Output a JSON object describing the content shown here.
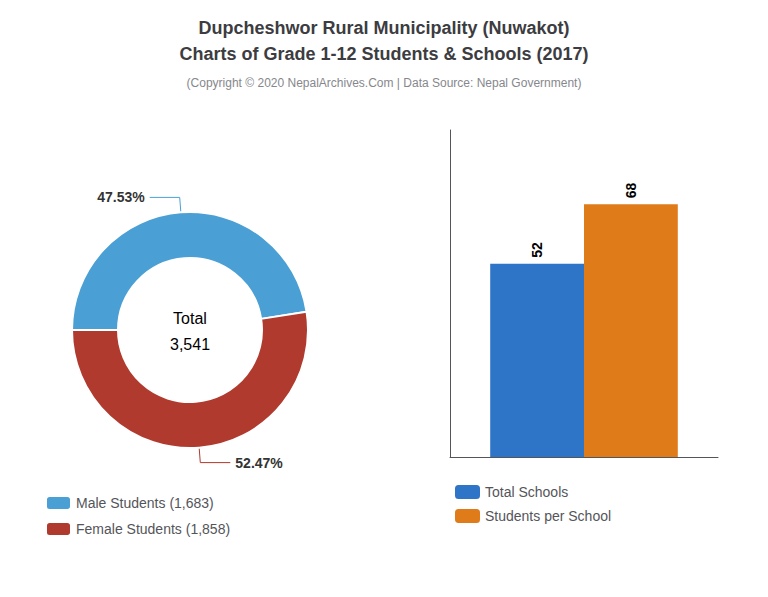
{
  "title": "Dupcheshwor Rural Municipality (Nuwakot)\nCharts of Grade 1-12 Students & Schools (2017)",
  "subtitle": "(Copyright © 2020 NepalArchives.Com | Data Source: Nepal Government)",
  "chart_data": [
    {
      "type": "pie",
      "categories": [
        "Male Students (1,683)",
        "Female Students (1,858)"
      ],
      "values": [
        47.53,
        52.47
      ],
      "value_labels": [
        "47.53%",
        "52.47%"
      ],
      "colors": [
        "#4a9fd4",
        "#b03a2e"
      ],
      "data_labels": true,
      "annotations": [
        "Total",
        "3,541"
      ],
      "legend": "bottom"
    },
    {
      "type": "bar",
      "categories": [
        null
      ],
      "series": [
        {
          "name": "Total Schools",
          "color": "#2e75c8",
          "values": [
            52
          ]
        },
        {
          "name": "Students per School",
          "color": "#e07b1a",
          "values": [
            68
          ]
        }
      ],
      "ylim": [
        0,
        88
      ],
      "tick_labels": false,
      "grid": false,
      "data_labels": true,
      "legend": "bottom"
    }
  ]
}
